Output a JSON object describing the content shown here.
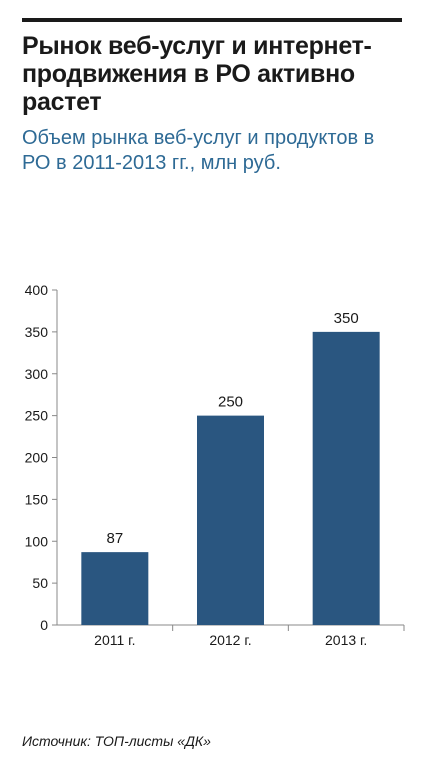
{
  "header": {
    "title": "Рынок веб-услуг и интернет-продвижения в РО активно растет",
    "subtitle": "Объем рынка веб-услуг и продуктов в РО в 2011-2013 гг., млн руб."
  },
  "footer": {
    "source": "Источник: ТОП-листы «ДК»"
  },
  "colors": {
    "bar": "#2a5680",
    "accent": "#2e6a95",
    "text": "#1a1a1a",
    "axis": "#888888"
  },
  "chart_data": {
    "type": "bar",
    "categories": [
      "2011 г.",
      "2012 г.",
      "2013 г."
    ],
    "values": [
      87,
      250,
      350
    ],
    "data_labels": [
      "87",
      "250",
      "350"
    ],
    "ylim": [
      0,
      400
    ],
    "yticks": [
      0,
      50,
      100,
      150,
      200,
      250,
      300,
      350,
      400
    ],
    "grid": false,
    "legend": "none"
  }
}
